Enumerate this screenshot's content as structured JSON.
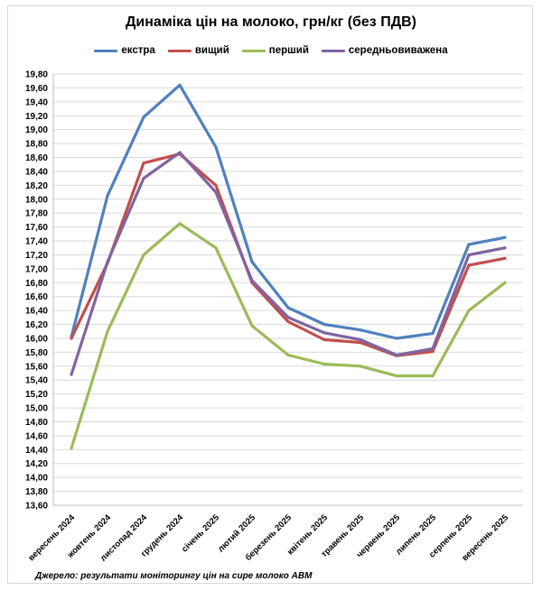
{
  "chart_data": {
    "type": "line",
    "title": "Динаміка цін на молоко, грн/кг (без ПДВ)",
    "xlabel": "",
    "ylabel": "",
    "ylim": [
      13.6,
      19.8
    ],
    "ytick_step": 0.2,
    "grid": true,
    "legend_position": "top",
    "categories": [
      "вересень 2024",
      "жовтень 2024",
      "листопад 2024",
      "грудень 2024",
      "січень 2025",
      "лютий 2025",
      "березень 2025",
      "квітень 2025",
      "травень 2025",
      "червень 2025",
      "липень 2025",
      "серпень 2025",
      "вересень 2025"
    ],
    "series": [
      {
        "name": "екстра",
        "color": "#4f81bd",
        "values": [
          16.02,
          18.05,
          19.18,
          19.64,
          18.75,
          17.1,
          16.44,
          16.2,
          16.12,
          16.0,
          16.07,
          17.35,
          17.45
        ]
      },
      {
        "name": "вищий",
        "color": "#c0504d",
        "values": [
          16.0,
          17.08,
          18.52,
          18.65,
          18.2,
          16.8,
          16.24,
          15.98,
          15.94,
          15.75,
          15.81,
          17.05,
          17.15
        ]
      },
      {
        "name": "перший",
        "color": "#9bbb59",
        "values": [
          14.42,
          16.1,
          17.2,
          17.65,
          17.3,
          16.18,
          15.76,
          15.63,
          15.6,
          15.46,
          15.46,
          16.4,
          16.8
        ]
      },
      {
        "name": "середньовиважена",
        "color": "#8064a2",
        "values": [
          15.48,
          17.1,
          18.3,
          18.67,
          18.1,
          16.83,
          16.3,
          16.08,
          15.98,
          15.76,
          15.85,
          17.2,
          17.3
        ]
      }
    ]
  },
  "footer": {
    "source": "Джерело: результати моніторингу цін на сире молоко АВМ"
  }
}
